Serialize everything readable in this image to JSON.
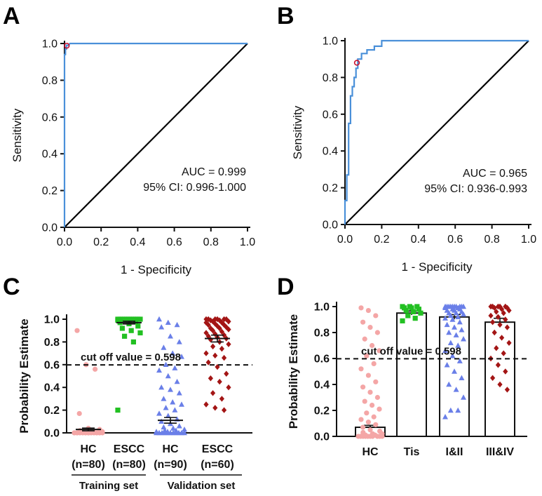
{
  "panels": {
    "A": {
      "label": "A"
    },
    "B": {
      "label": "B"
    },
    "C": {
      "label": "C"
    },
    "D": {
      "label": "D"
    }
  },
  "colors": {
    "roc": "#4a90d9",
    "diag": "#000000",
    "point": "#c8102e",
    "hc": "#f4a6a6",
    "escc_train": "#22c022",
    "hc_val": "#6a7fe8",
    "escc_val": "#a31515",
    "tis": "#22c022",
    "i_ii": "#6a7fe8",
    "iii_iv": "#a31515"
  },
  "chart_data": [
    {
      "id": "A",
      "type": "line",
      "xlabel": "1 - Specificity",
      "ylabel": "Sensitivity",
      "xlim": [
        0,
        1
      ],
      "ylim": [
        0,
        1
      ],
      "xticks": [
        "0.0",
        "0.2",
        "0.4",
        "0.6",
        "0.8",
        "1.0"
      ],
      "yticks": [
        "0.0",
        "0.2",
        "0.4",
        "0.6",
        "0.8",
        "1.0"
      ],
      "series": [
        {
          "name": "ROC",
          "x": [
            0,
            0,
            0.005,
            0.005,
            0.01,
            0.01,
            0.02,
            0.03,
            1.0
          ],
          "y": [
            0,
            0.94,
            0.94,
            0.97,
            0.97,
            0.99,
            0.99,
            1.0,
            1.0
          ]
        },
        {
          "name": "Reference",
          "x": [
            0,
            1
          ],
          "y": [
            0,
            1
          ]
        }
      ],
      "cutoff_point": {
        "x": 0.0125,
        "y": 0.988
      },
      "annotations": [
        "AUC = 0.999",
        "95% CI: 0.996-1.000"
      ]
    },
    {
      "id": "B",
      "type": "line",
      "xlabel": "1 - Specificity",
      "ylabel": "Sensitivity",
      "xlim": [
        0,
        1
      ],
      "ylim": [
        0,
        1
      ],
      "xticks": [
        "0.0",
        "0.2",
        "0.4",
        "0.6",
        "0.8",
        "1.0"
      ],
      "yticks": [
        "0.0",
        "0.2",
        "0.4",
        "0.6",
        "0.8",
        "1.0"
      ],
      "series": [
        {
          "name": "ROC",
          "x": [
            0,
            0,
            0.01,
            0.01,
            0.02,
            0.02,
            0.03,
            0.03,
            0.04,
            0.04,
            0.05,
            0.05,
            0.06,
            0.06,
            0.07,
            0.07,
            0.09,
            0.09,
            0.12,
            0.12,
            0.16,
            0.16,
            0.2,
            0.2,
            1.0
          ],
          "y": [
            0,
            0.13,
            0.13,
            0.27,
            0.27,
            0.55,
            0.55,
            0.7,
            0.7,
            0.75,
            0.75,
            0.8,
            0.8,
            0.85,
            0.85,
            0.9,
            0.9,
            0.93,
            0.93,
            0.95,
            0.95,
            0.97,
            0.97,
            1.0,
            1.0
          ]
        },
        {
          "name": "Reference",
          "x": [
            0,
            1
          ],
          "y": [
            0,
            1
          ]
        }
      ],
      "cutoff_point": {
        "x": 0.065,
        "y": 0.88
      },
      "annotations": [
        "AUC = 0.965",
        "95% CI:  0.936-0.993"
      ]
    },
    {
      "id": "C",
      "type": "scatter",
      "ylabel": "Probability Estimate",
      "ylim": [
        0,
        1.0
      ],
      "yticks": [
        "0.0",
        "0.2",
        "0.4",
        "0.6",
        "0.8",
        "1.0"
      ],
      "categories": [
        "HC",
        "ESCC",
        "HC",
        "ESCC"
      ],
      "category_subs": [
        "(n=80)",
        "(n=80)",
        "(n=90)",
        "(n=60)"
      ],
      "groups": [
        "Training set",
        "Validation set"
      ],
      "cutoff": {
        "value": 0.598,
        "label": "cut off value = 0.598"
      },
      "series": [
        {
          "name": "HC (n=80)",
          "marker": "circle",
          "mean": 0.03,
          "sem": 0.012,
          "values": [
            0.9,
            0.6,
            0.56,
            0.17,
            0.04,
            0.03,
            0.02,
            0.02,
            0.01,
            0.01,
            0.01,
            0.0,
            0.0,
            0.0,
            0.0,
            0.0,
            0.0,
            0.0,
            0.0,
            0.0,
            0.0,
            0.0,
            0.0,
            0.0,
            0.0,
            0.0,
            0.0,
            0.0
          ]
        },
        {
          "name": "ESCC (n=80)",
          "marker": "square",
          "mean": 0.97,
          "sem": 0.012,
          "values": [
            1.0,
            1.0,
            1.0,
            1.0,
            1.0,
            1.0,
            1.0,
            1.0,
            1.0,
            1.0,
            1.0,
            0.99,
            0.99,
            0.98,
            0.97,
            0.96,
            0.94,
            0.92,
            0.9,
            0.88,
            0.85,
            0.8,
            0.2
          ]
        },
        {
          "name": "HC (n=90)",
          "marker": "triangle",
          "mean": 0.11,
          "sem": 0.025,
          "values": [
            1.0,
            0.97,
            0.95,
            0.93,
            0.85,
            0.8,
            0.75,
            0.7,
            0.67,
            0.6,
            0.57,
            0.55,
            0.5,
            0.45,
            0.4,
            0.38,
            0.35,
            0.3,
            0.27,
            0.25,
            0.22,
            0.2,
            0.17,
            0.15,
            0.12,
            0.1,
            0.08,
            0.06,
            0.05,
            0.04,
            0.03,
            0.02,
            0.02,
            0.01,
            0.01,
            0.0,
            0.0,
            0.0,
            0.0,
            0.0,
            0.0,
            0.0,
            0.0,
            0.0,
            0.0,
            0.0
          ]
        },
        {
          "name": "ESCC (n=60)",
          "marker": "diamond",
          "mean": 0.83,
          "sem": 0.03,
          "values": [
            1.0,
            1.0,
            1.0,
            1.0,
            1.0,
            1.0,
            0.99,
            0.99,
            0.98,
            0.98,
            0.97,
            0.97,
            0.96,
            0.95,
            0.95,
            0.94,
            0.93,
            0.92,
            0.92,
            0.91,
            0.9,
            0.89,
            0.88,
            0.87,
            0.86,
            0.85,
            0.84,
            0.83,
            0.82,
            0.8,
            0.78,
            0.76,
            0.74,
            0.7,
            0.68,
            0.66,
            0.62,
            0.58,
            0.52,
            0.48,
            0.45,
            0.4,
            0.35,
            0.3,
            0.25,
            0.22,
            0.2
          ]
        }
      ]
    },
    {
      "id": "D",
      "type": "bar",
      "ylabel": "Probability Estimate",
      "ylim": [
        0,
        1.0
      ],
      "yticks": [
        "0.0",
        "0.2",
        "0.4",
        "0.6",
        "0.8",
        "1.0"
      ],
      "categories": [
        "HC",
        "Tis",
        "I&II",
        "III&IV"
      ],
      "values": [
        0.07,
        0.95,
        0.92,
        0.88
      ],
      "errors": [
        0.015,
        0.015,
        0.018,
        0.03
      ],
      "cutoff": {
        "value": 0.598,
        "label": "cut off value = 0.598"
      },
      "points": [
        {
          "name": "HC",
          "marker": "circle",
          "values": [
            0.99,
            0.97,
            0.93,
            0.88,
            0.84,
            0.8,
            0.75,
            0.7,
            0.66,
            0.62,
            0.56,
            0.52,
            0.47,
            0.42,
            0.38,
            0.34,
            0.3,
            0.27,
            0.24,
            0.21,
            0.18,
            0.15,
            0.13,
            0.11,
            0.09,
            0.07,
            0.05,
            0.04,
            0.03,
            0.02,
            0.02,
            0.01,
            0.01,
            0.0,
            0.0,
            0.0,
            0.0,
            0.0,
            0.0,
            0.0,
            0.0,
            0.0,
            0.0
          ]
        },
        {
          "name": "Tis",
          "marker": "square",
          "values": [
            1.0,
            1.0,
            1.0,
            0.99,
            0.99,
            0.98,
            0.97,
            0.96,
            0.95,
            0.93,
            0.91,
            0.89
          ]
        },
        {
          "name": "I&II",
          "marker": "triangle",
          "values": [
            1.0,
            1.0,
            1.0,
            1.0,
            1.0,
            1.0,
            1.0,
            1.0,
            1.0,
            1.0,
            0.99,
            0.99,
            0.98,
            0.98,
            0.97,
            0.97,
            0.96,
            0.95,
            0.95,
            0.94,
            0.93,
            0.92,
            0.91,
            0.9,
            0.88,
            0.86,
            0.84,
            0.82,
            0.8,
            0.78,
            0.75,
            0.72,
            0.7,
            0.66,
            0.62,
            0.58,
            0.55,
            0.5,
            0.45,
            0.4,
            0.36,
            0.3,
            0.2,
            0.2,
            0.15
          ]
        },
        {
          "name": "III&IV",
          "marker": "diamond",
          "values": [
            1.0,
            1.0,
            1.0,
            1.0,
            1.0,
            0.99,
            0.99,
            0.98,
            0.97,
            0.96,
            0.95,
            0.93,
            0.92,
            0.9,
            0.88,
            0.86,
            0.84,
            0.8,
            0.76,
            0.72,
            0.68,
            0.64,
            0.6,
            0.55,
            0.5,
            0.45,
            0.4,
            0.36
          ]
        }
      ]
    }
  ]
}
